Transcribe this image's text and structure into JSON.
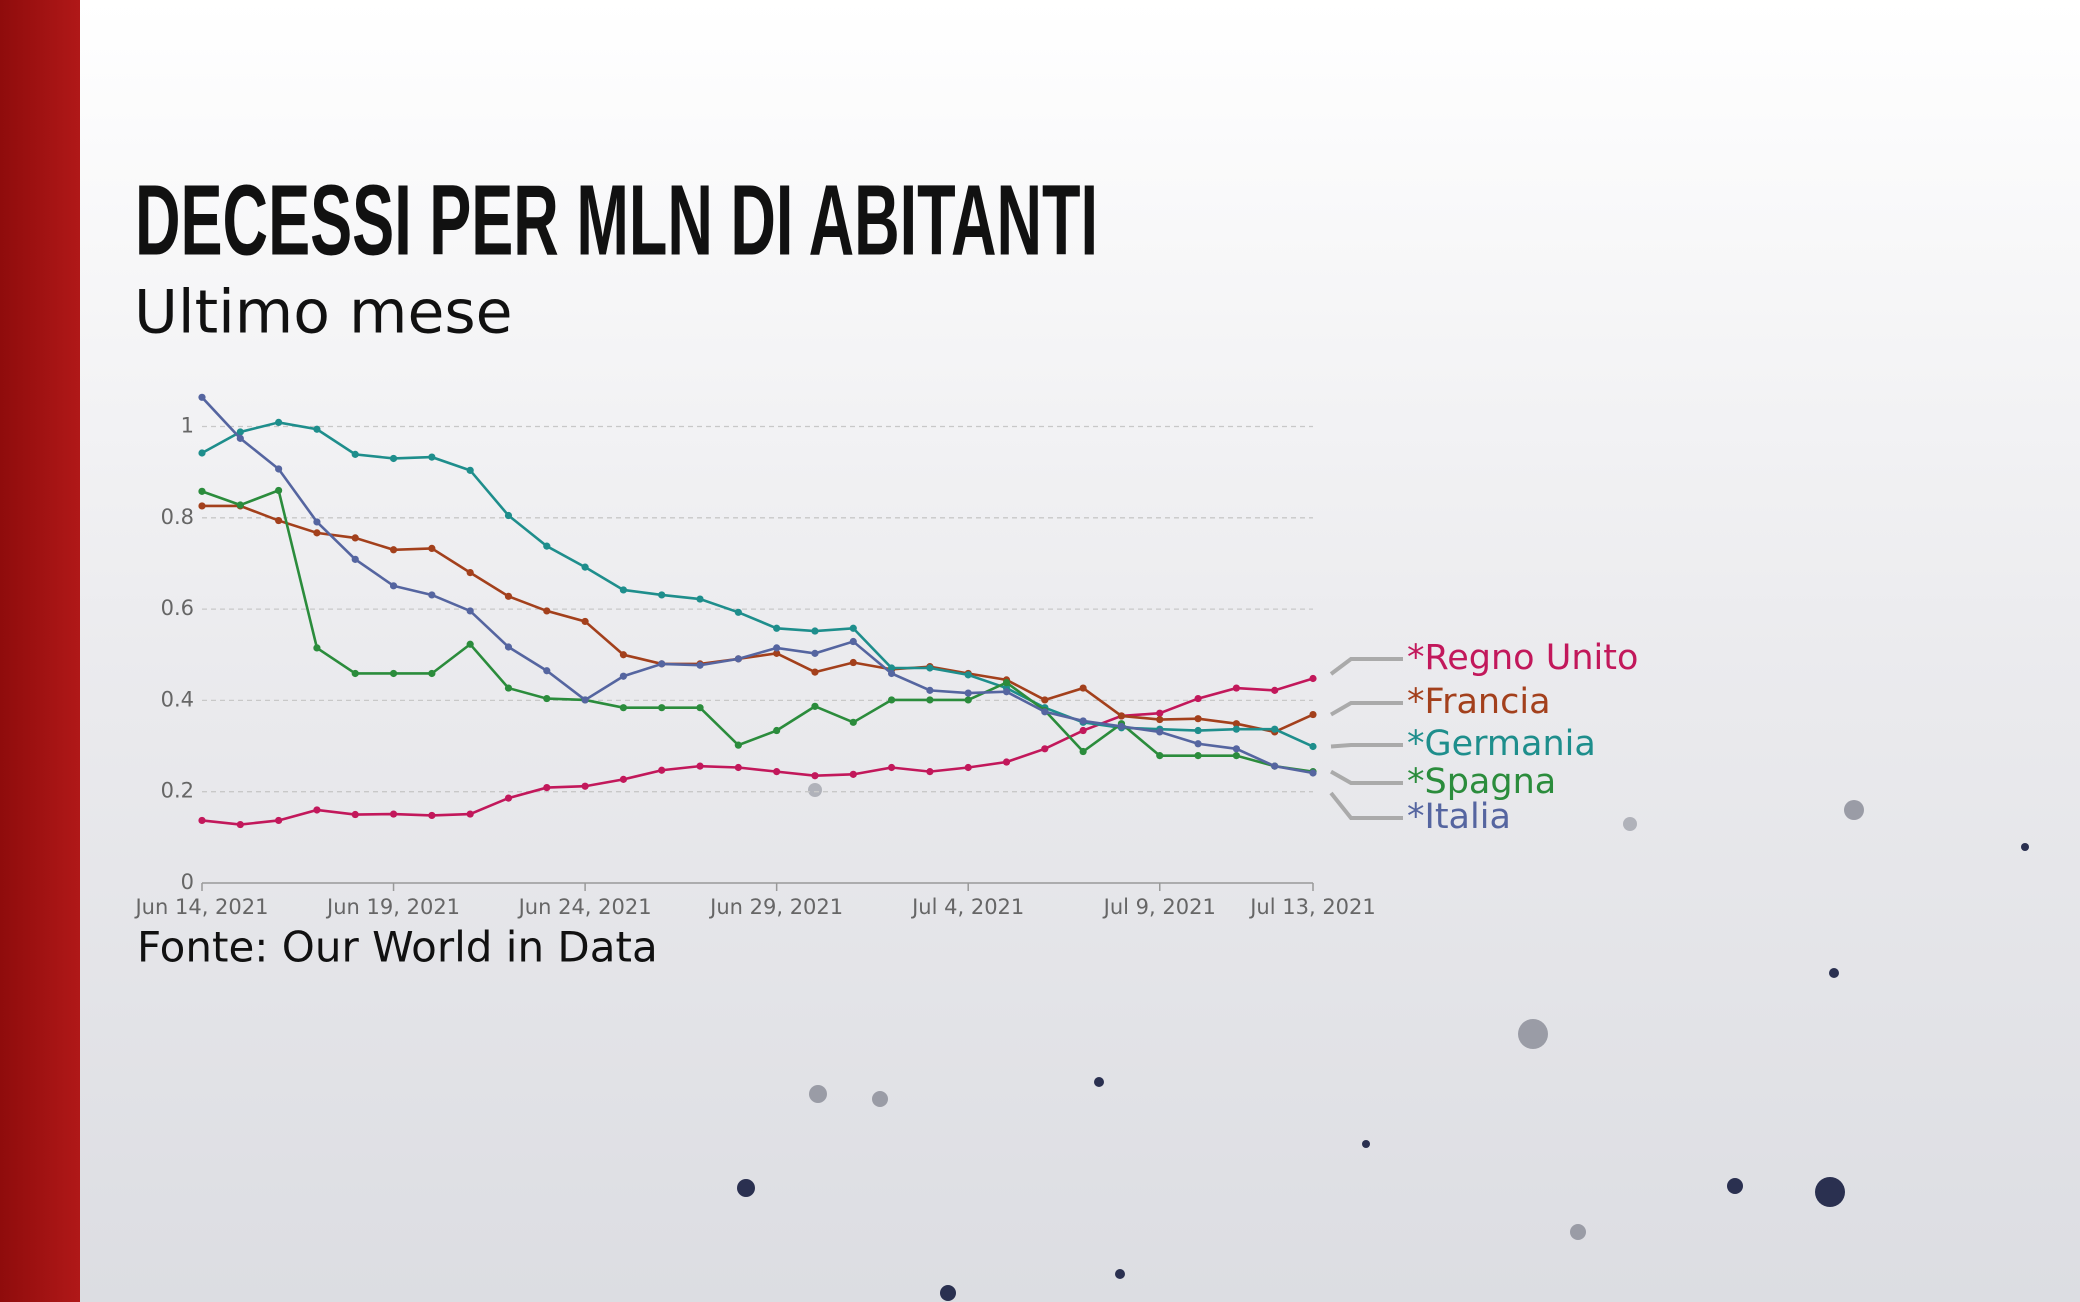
{
  "chart_data": {
    "type": "line",
    "title": "DECESSI PER MLN DI ABITANTI",
    "subtitle": "Ultimo mese",
    "source": "Fonte: Our World in Data",
    "x": [
      "2021-06-14",
      "2021-06-15",
      "2021-06-16",
      "2021-06-17",
      "2021-06-18",
      "2021-06-19",
      "2021-06-20",
      "2021-06-21",
      "2021-06-22",
      "2021-06-23",
      "2021-06-24",
      "2021-06-25",
      "2021-06-26",
      "2021-06-27",
      "2021-06-28",
      "2021-06-29",
      "2021-06-30",
      "2021-07-01",
      "2021-07-02",
      "2021-07-03",
      "2021-07-04",
      "2021-07-05",
      "2021-07-06",
      "2021-07-07",
      "2021-07-08",
      "2021-07-09",
      "2021-07-10",
      "2021-07-11",
      "2021-07-12",
      "2021-07-13"
    ],
    "series": [
      {
        "name": "*Regno Unito",
        "color": "#c2185b",
        "values": [
          0.137,
          0.128,
          0.137,
          0.16,
          0.15,
          0.151,
          0.148,
          0.151,
          0.186,
          0.209,
          0.212,
          0.227,
          0.247,
          0.256,
          0.253,
          0.244,
          0.235,
          0.238,
          0.253,
          0.244,
          0.253,
          0.265,
          0.294,
          0.334,
          0.366,
          0.372,
          0.404,
          0.427,
          0.422,
          0.448
        ]
      },
      {
        "name": "*Francia",
        "color": "#a3401c",
        "values": [
          0.826,
          0.826,
          0.794,
          0.767,
          0.756,
          0.73,
          0.733,
          0.68,
          0.628,
          0.596,
          0.573,
          0.5,
          0.48,
          0.48,
          0.491,
          0.503,
          0.462,
          0.483,
          0.468,
          0.474,
          0.459,
          0.445,
          0.401,
          0.427,
          0.366,
          0.358,
          0.36,
          0.349,
          0.331,
          0.369
        ]
      },
      {
        "name": "*Germania",
        "color": "#1e8e8c",
        "values": [
          0.942,
          0.988,
          1.009,
          0.994,
          0.939,
          0.93,
          0.933,
          0.904,
          0.805,
          0.738,
          0.692,
          0.642,
          0.631,
          0.622,
          0.593,
          0.558,
          0.552,
          0.558,
          0.471,
          0.471,
          0.456,
          0.427,
          0.384,
          0.352,
          0.34,
          0.337,
          0.334,
          0.337,
          0.337,
          0.299
        ]
      },
      {
        "name": "*Spagna",
        "color": "#2b8c3c",
        "values": [
          0.858,
          0.828,
          0.86,
          0.515,
          0.459,
          0.459,
          0.459,
          0.523,
          0.427,
          0.404,
          0.401,
          0.384,
          0.384,
          0.384,
          0.302,
          0.334,
          0.387,
          0.352,
          0.401,
          0.401,
          0.401,
          0.439,
          0.378,
          0.288,
          0.349,
          0.279,
          0.279,
          0.279,
          0.256,
          0.244
        ]
      },
      {
        "name": "*Italia",
        "color": "#5565a0",
        "values": [
          1.064,
          0.974,
          0.907,
          0.791,
          0.709,
          0.651,
          0.631,
          0.596,
          0.517,
          0.465,
          0.401,
          0.453,
          0.48,
          0.477,
          0.491,
          0.515,
          0.503,
          0.529,
          0.459,
          0.422,
          0.416,
          0.419,
          0.375,
          0.355,
          0.343,
          0.331,
          0.305,
          0.294,
          0.256,
          0.241
        ]
      }
    ],
    "ylim": [
      0,
      1.08
    ],
    "yticks": [
      0,
      0.2,
      0.4,
      0.6,
      0.8,
      1
    ],
    "xlim": [
      "2021-06-14",
      "2021-07-13"
    ],
    "xticks": [
      {
        "value": "2021-06-14",
        "label": "Jun 14, 2021"
      },
      {
        "value": "2021-06-19",
        "label": "Jun 19, 2021"
      },
      {
        "value": "2021-06-24",
        "label": "Jun 24, 2021"
      },
      {
        "value": "2021-06-29",
        "label": "Jun 29, 2021"
      },
      {
        "value": "2021-07-04",
        "label": "Jul 4, 2021"
      },
      {
        "value": "2021-07-09",
        "label": "Jul 9, 2021"
      },
      {
        "value": "2021-07-13",
        "label": "Jul 13, 2021"
      }
    ],
    "grid": true
  }
}
